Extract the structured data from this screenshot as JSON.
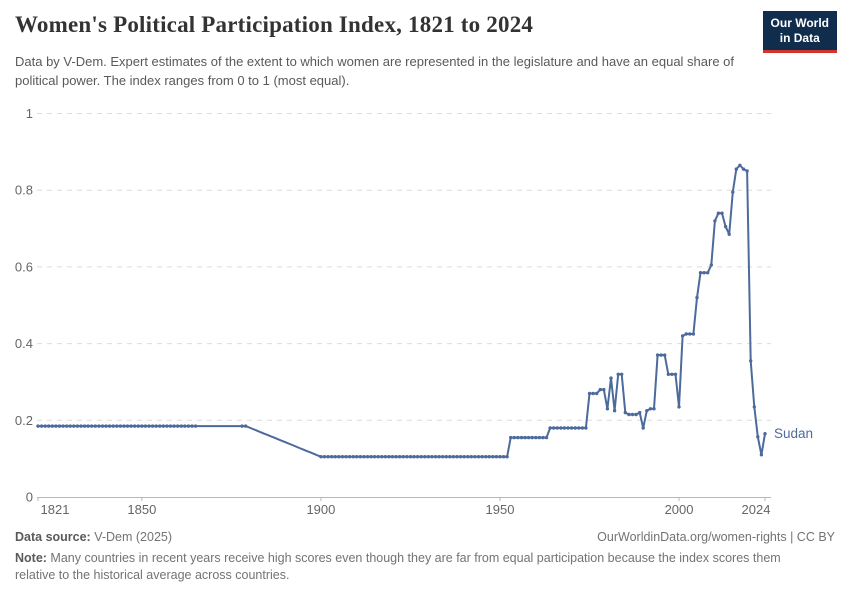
{
  "header": {
    "title": "Women's Political Participation Index, 1821 to 2024",
    "subtitle": "Data by V-Dem. Expert estimates of the extent to which women are represented in the legislature and have an equal share of political power. The index ranges from 0 to 1 (most equal).",
    "logo": {
      "line1": "Our World",
      "line2": "in Data"
    }
  },
  "chart_data": {
    "type": "line",
    "title": "Women's Political Participation Index, 1821 to 2024",
    "xlabel": "",
    "ylabel": "",
    "xlim": [
      1821,
      2024
    ],
    "ylim": [
      0,
      1
    ],
    "xticks": [
      1821,
      1850,
      1900,
      1950,
      2000,
      2024
    ],
    "yticks": [
      0,
      0.2,
      0.4,
      0.6,
      0.8,
      1
    ],
    "grid": true,
    "legend_position": "end-of-line-label",
    "series": [
      {
        "name": "Sudan",
        "color": "#4c6a9c",
        "interpolation": "linear-yearly",
        "marker_gap_year_ranges": [
          [
            1866,
            1877
          ],
          [
            1880,
            1899
          ]
        ],
        "anchor_points": [
          [
            1821,
            0.185
          ],
          [
            1865,
            0.185
          ],
          [
            1878,
            0.185
          ],
          [
            1879,
            0.185
          ],
          [
            1900,
            0.105
          ],
          [
            1952,
            0.105
          ],
          [
            1953,
            0.155
          ],
          [
            1963,
            0.155
          ],
          [
            1964,
            0.18
          ],
          [
            1974,
            0.18
          ],
          [
            1975,
            0.27
          ],
          [
            1977,
            0.27
          ],
          [
            1978,
            0.28
          ],
          [
            1979,
            0.28
          ],
          [
            1980,
            0.23
          ],
          [
            1981,
            0.31
          ],
          [
            1982,
            0.225
          ],
          [
            1983,
            0.32
          ],
          [
            1984,
            0.32
          ],
          [
            1985,
            0.22
          ],
          [
            1986,
            0.215
          ],
          [
            1988,
            0.215
          ],
          [
            1989,
            0.22
          ],
          [
            1990,
            0.18
          ],
          [
            1991,
            0.225
          ],
          [
            1992,
            0.23
          ],
          [
            1993,
            0.23
          ],
          [
            1994,
            0.37
          ],
          [
            1996,
            0.37
          ],
          [
            1997,
            0.32
          ],
          [
            1999,
            0.32
          ],
          [
            2000,
            0.235
          ],
          [
            2001,
            0.42
          ],
          [
            2002,
            0.425
          ],
          [
            2004,
            0.425
          ],
          [
            2005,
            0.52
          ],
          [
            2006,
            0.585
          ],
          [
            2008,
            0.585
          ],
          [
            2009,
            0.605
          ],
          [
            2010,
            0.72
          ],
          [
            2011,
            0.74
          ],
          [
            2012,
            0.74
          ],
          [
            2013,
            0.705
          ],
          [
            2014,
            0.685
          ],
          [
            2015,
            0.795
          ],
          [
            2016,
            0.855
          ],
          [
            2017,
            0.865
          ],
          [
            2018,
            0.855
          ],
          [
            2019,
            0.85
          ],
          [
            2020,
            0.355
          ],
          [
            2021,
            0.235
          ],
          [
            2022,
            0.157
          ],
          [
            2023,
            0.11
          ],
          [
            2024,
            0.165
          ]
        ]
      }
    ]
  },
  "footer": {
    "source_label": "Data source:",
    "source_value": " V-Dem (2025)",
    "rights": "OurWorldinData.org/women-rights | CC BY",
    "note_label": "Note:",
    "note_text": " Many countries in recent years receive high scores even though they are far from equal participation because the index scores them relative to the historical average across countries."
  },
  "colors": {
    "line": "#4c6a9c",
    "logo_bg": "#102d4e",
    "logo_accent": "#d1342a",
    "grid": "#dcdcdc",
    "axis": "#b8b8b8",
    "tick_label": "#666666"
  }
}
